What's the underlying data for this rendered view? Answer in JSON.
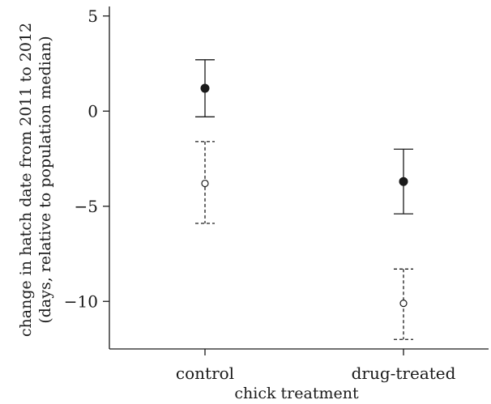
{
  "chart_data": {
    "type": "scatter",
    "title": "",
    "xlabel": "chick treatment",
    "ylabel": [
      "change in hatch date from 2011 to 2012",
      "(days, relative to population median)"
    ],
    "categories": [
      "control",
      "drug-treated"
    ],
    "ylim": [
      -12.5,
      5.5
    ],
    "yticks": [
      -10,
      -5,
      0,
      5
    ],
    "ytick_labels": [
      "−10",
      "−5",
      "0",
      "5"
    ],
    "grid": false,
    "series": [
      {
        "marker": "filled-circle",
        "line_style": "solid",
        "color": "#1a1a1a",
        "values": [
          {
            "category": "control",
            "y": 1.2,
            "lower": -0.3,
            "upper": 2.7
          },
          {
            "category": "drug-treated",
            "y": -3.7,
            "lower": -5.4,
            "upper": -2.0
          }
        ]
      },
      {
        "marker": "open-circle",
        "line_style": "dashed",
        "color": "#1a1a1a",
        "values": [
          {
            "category": "control",
            "y": -3.8,
            "lower": -5.9,
            "upper": -1.6
          },
          {
            "category": "drug-treated",
            "y": -10.1,
            "lower": -12.0,
            "upper": -8.3
          }
        ]
      }
    ]
  }
}
